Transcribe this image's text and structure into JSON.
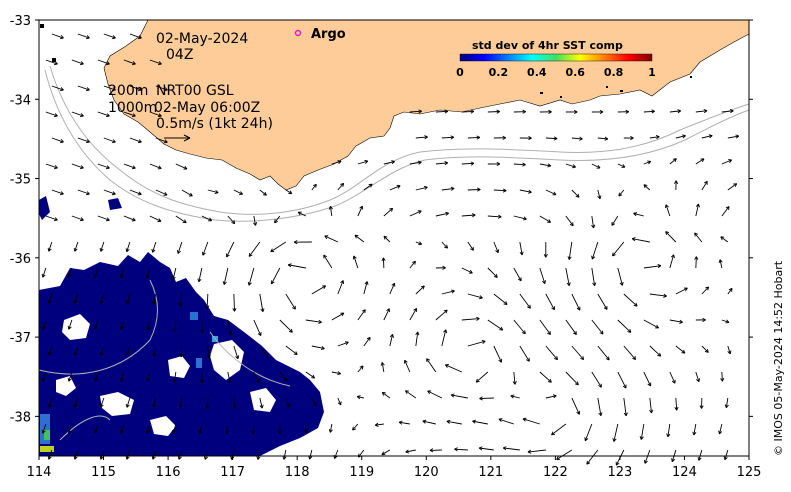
{
  "annotations": {
    "date": "02-May-2024",
    "hour": "04Z",
    "depth_200": "200m",
    "product": "NRT00 GSL",
    "depth_1000": "1000m",
    "product_time": "02-May 06:00Z",
    "scale_label": "0.5m/s (1kt 24h)"
  },
  "argo": {
    "label": "Argo",
    "color": "#e020c0"
  },
  "colorbar": {
    "title": "std dev of 4hr SST comp",
    "ticks": [
      "0",
      "0.2",
      "0.4",
      "0.6",
      "0.8",
      "1"
    ],
    "colormap": "jet"
  },
  "axes": {
    "x_ticks": [
      "114",
      "115",
      "116",
      "117",
      "118",
      "119",
      "120",
      "121",
      "122",
      "123",
      "124",
      "125"
    ],
    "y_ticks": [
      "-33",
      "-34",
      "-35",
      "-36",
      "-37",
      "-38"
    ],
    "x_range": [
      114,
      125
    ],
    "y_range": [
      -38.5,
      -33
    ]
  },
  "credit": "© IMOS 05-May-2024 14:52 Hobart",
  "colors": {
    "land": "#fdcc98",
    "sst_low": "#00007f",
    "bathymetry": "#b0b0b0"
  }
}
